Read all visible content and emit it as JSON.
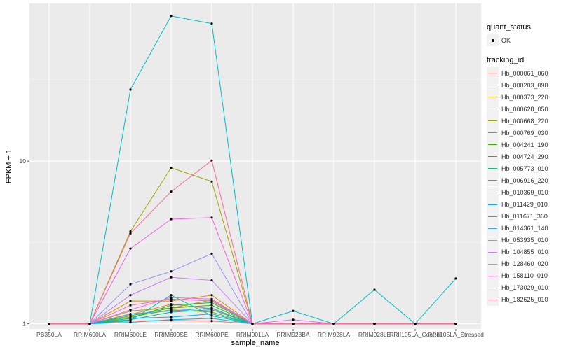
{
  "chart_data": {
    "type": "line",
    "xlabel": "sample_name",
    "ylabel": "FPKM + 1",
    "y_scale": "log10",
    "ylim": [
      0.93,
      93
    ],
    "y_ticks": [
      1,
      10
    ],
    "y_tick_labels": [
      "1",
      "10"
    ],
    "categories": [
      "PB350LA",
      "RRIM600LA",
      "RRIM600LE",
      "RRIM600SE",
      "RRIM600PE",
      "RRIM901LA",
      "RRIM928BA",
      "RRIM928LA",
      "RRIM928LE",
      "RRII105LA_Control",
      "RRII105LA_Stressed"
    ],
    "grid": true,
    "legend_position": "right",
    "legend_shape": {
      "title": "quant_status",
      "entries": [
        "OK"
      ]
    },
    "legend_color_title": "tracking_id",
    "series": [
      {
        "name": "Hb_000061_060",
        "color": "#F8766D",
        "values": [
          1,
          1,
          1.04,
          1.05,
          1.04,
          1,
          1,
          1,
          1,
          1,
          1
        ]
      },
      {
        "name": "Hb_000203_090",
        "color": "#EA8331",
        "values": [
          1,
          1,
          1.14,
          1.32,
          1.24,
          1,
          1,
          1,
          1,
          1,
          1
        ]
      },
      {
        "name": "Hb_000373_220",
        "color": "#D89000",
        "values": [
          1,
          1,
          1.38,
          1.38,
          1.5,
          1,
          1,
          1,
          1,
          1,
          1
        ]
      },
      {
        "name": "Hb_000628_050",
        "color": "#C09B00",
        "values": [
          1,
          1,
          1.2,
          1.25,
          1.4,
          1,
          1,
          1,
          1,
          1,
          1
        ]
      },
      {
        "name": "Hb_000668_220",
        "color": "#A3A500",
        "values": [
          1,
          1,
          3.7,
          9.1,
          7.5,
          1,
          1,
          1,
          1,
          1,
          1
        ]
      },
      {
        "name": "Hb_000769_030",
        "color": "#7CAE00",
        "values": [
          1,
          1,
          1.1,
          1.22,
          1.18,
          1,
          1,
          1,
          1,
          1,
          1
        ]
      },
      {
        "name": "Hb_004241_190",
        "color": "#39B600",
        "values": [
          1,
          1,
          1.12,
          1.25,
          1.3,
          1,
          1,
          1,
          1,
          1,
          1
        ]
      },
      {
        "name": "Hb_004724_290",
        "color": "#00BB4E",
        "values": [
          1,
          1,
          1.08,
          1.3,
          1.35,
          1,
          1,
          1,
          1,
          1,
          1
        ]
      },
      {
        "name": "Hb_005773_010",
        "color": "#00BF7D",
        "values": [
          1,
          1,
          1.06,
          1.18,
          1.22,
          1,
          1,
          1,
          1,
          1,
          1
        ]
      },
      {
        "name": "Hb_006916_220",
        "color": "#00C1A3",
        "values": [
          1,
          1,
          1.05,
          1.5,
          1.12,
          1,
          1,
          1,
          1,
          1,
          1
        ]
      },
      {
        "name": "Hb_010369_010",
        "color": "#00BFC4",
        "values": [
          1,
          1,
          27.5,
          78,
          70,
          1,
          1.2,
          1,
          1.62,
          1,
          1.9
        ]
      },
      {
        "name": "Hb_011429_010",
        "color": "#00BAE0",
        "values": [
          1,
          1,
          1.02,
          1.06,
          1.08,
          1,
          1,
          1,
          1,
          1,
          1
        ]
      },
      {
        "name": "Hb_011671_360",
        "color": "#00B0F6",
        "values": [
          1,
          1,
          1.08,
          1.1,
          1.15,
          1,
          1,
          1,
          1,
          1,
          1
        ]
      },
      {
        "name": "Hb_014361_140",
        "color": "#35A2FF",
        "values": [
          1,
          1,
          1.15,
          1.2,
          1.25,
          1,
          1,
          1,
          1,
          1,
          1
        ]
      },
      {
        "name": "Hb_053935_010",
        "color": "#9590FF",
        "values": [
          1,
          1,
          1.75,
          2.1,
          2.7,
          1,
          1,
          1,
          1,
          1,
          1
        ]
      },
      {
        "name": "Hb_104855_010",
        "color": "#C77CFF",
        "values": [
          1,
          1,
          1.5,
          1.93,
          1.85,
          1,
          1,
          1,
          1,
          1,
          1
        ]
      },
      {
        "name": "Hb_128460_020",
        "color": "#E76BF3",
        "values": [
          1,
          1,
          1.22,
          1.45,
          1.42,
          1,
          1.06,
          1,
          1,
          1,
          1
        ]
      },
      {
        "name": "Hb_158110_010",
        "color": "#FA62DB",
        "values": [
          1,
          1,
          2.9,
          4.4,
          4.5,
          1,
          1,
          1,
          1,
          1,
          1
        ]
      },
      {
        "name": "Hb_173029_010",
        "color": "#FF62BC",
        "values": [
          1,
          1,
          1.3,
          1.42,
          1.38,
          1,
          1,
          1,
          1,
          1,
          1
        ]
      },
      {
        "name": "Hb_182625_010",
        "color": "#FF6C91",
        "values": [
          1,
          1,
          3.6,
          6.5,
          10.1,
          1,
          1,
          1,
          1,
          1,
          1
        ]
      }
    ]
  }
}
